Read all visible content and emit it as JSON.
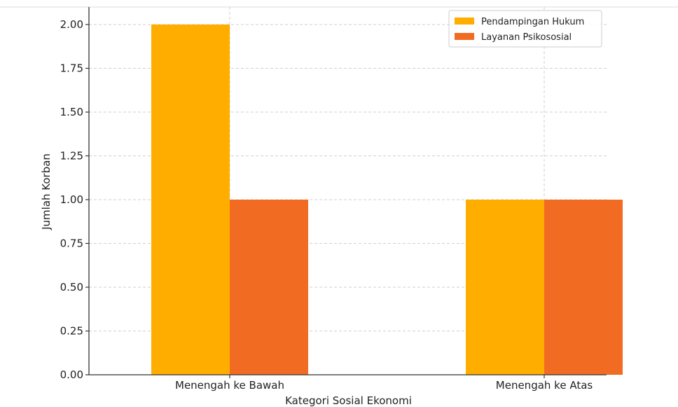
{
  "chart_data": {
    "type": "bar",
    "title": "",
    "xlabel": "Kategori Sosial Ekonomi",
    "ylabel": "Jumlah Korban",
    "categories": [
      "Menengah ke Bawah",
      "Menengah ke Atas"
    ],
    "series": [
      {
        "name": "Pendampingan Hukum",
        "values": [
          2,
          1
        ],
        "color": "#FFAE00"
      },
      {
        "name": "Layanan Psikososial",
        "values": [
          1,
          1
        ],
        "color": "#F26B22"
      }
    ],
    "ylim": [
      0,
      2.1
    ],
    "yticks": [
      "0.00",
      "0.25",
      "0.50",
      "0.75",
      "1.00",
      "1.25",
      "1.50",
      "1.75",
      "2.00"
    ],
    "grid": true,
    "legend_position": "top-right"
  }
}
